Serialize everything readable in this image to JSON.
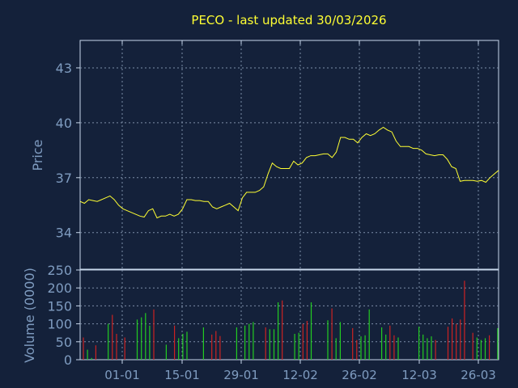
{
  "title": "PECO - last updated 30/03/2026",
  "colors": {
    "background": "#14213a",
    "text_axis": "#7f9cc0",
    "frame": "#c8d8ec",
    "grid": "#7d8ea8",
    "price_line": "#ffff33",
    "title": "#ffff33",
    "volume_up": "#22cc22",
    "volume_down": "#cc2222"
  },
  "chart_data": [
    {
      "type": "line",
      "ylabel": "Price",
      "ylim": [
        32,
        44.5
      ],
      "yticks": [
        "43",
        "40",
        "37",
        "34"
      ],
      "grid": true,
      "series": [
        {
          "values": [
            35.7,
            35.6,
            35.8,
            35.75,
            35.7,
            35.8,
            35.9,
            36.0,
            35.8,
            35.5,
            35.3,
            35.2,
            35.1,
            35.0,
            34.9,
            34.85,
            35.2,
            35.3,
            34.8,
            34.9,
            34.9,
            35.0,
            34.9,
            35.0,
            35.3,
            35.8,
            35.8,
            35.75,
            35.75,
            35.7,
            35.7,
            35.4,
            35.3,
            35.4,
            35.5,
            35.6,
            35.4,
            35.2,
            35.9,
            36.2,
            36.2,
            36.2,
            36.3,
            36.5,
            37.2,
            37.8,
            37.6,
            37.5,
            37.5,
            37.5,
            37.9,
            37.7,
            37.8,
            38.1,
            38.2,
            38.2,
            38.25,
            38.3,
            38.3,
            38.1,
            38.4,
            39.2,
            39.2,
            39.1,
            39.1,
            38.9,
            39.2,
            39.4,
            39.3,
            39.4,
            39.6,
            39.75,
            39.6,
            39.5,
            39.0,
            38.7,
            38.7,
            38.7,
            38.6,
            38.6,
            38.5,
            38.3,
            38.25,
            38.2,
            38.25,
            38.25,
            38.0,
            37.6,
            37.5,
            36.8,
            36.85,
            36.85,
            36.85,
            36.8,
            36.85,
            36.75,
            37.0,
            37.2,
            37.4
          ]
        }
      ]
    },
    {
      "type": "bar",
      "ylabel": "Volume (0000)",
      "ylim": [
        0,
        250
      ],
      "yticks": [
        "250",
        "200",
        "150",
        "100",
        "50",
        "0"
      ],
      "xticks": [
        "01-01",
        "15-01",
        "29-01",
        "12-02",
        "26-02",
        "12-03",
        "26-03"
      ],
      "grid": true,
      "series": [
        {
          "name": "",
          "values": [
            62,
            28,
            5,
            40,
            0,
            0,
            100,
            125,
            72,
            0,
            62,
            0,
            0,
            112,
            118,
            130,
            95,
            140,
            0,
            0,
            42,
            0,
            95,
            60,
            72,
            78,
            0,
            0,
            0,
            90,
            0,
            70,
            80,
            66,
            0,
            0,
            0,
            90,
            0,
            95,
            100,
            105,
            0,
            0,
            90,
            85,
            85,
            160,
            165,
            0,
            0,
            72,
            75,
            100,
            108,
            160,
            0,
            0,
            0,
            110,
            143,
            60,
            105,
            0,
            0,
            88,
            55,
            65,
            68,
            140,
            0,
            0,
            90,
            70,
            95,
            68,
            62,
            0,
            0,
            0,
            0,
            92,
            70,
            60,
            65,
            55,
            0,
            0,
            92,
            115,
            100,
            112,
            220,
            0,
            75,
            62,
            55,
            60,
            68,
            0,
            88
          ],
          "up": [
            false,
            true,
            true,
            false,
            false,
            false,
            true,
            false,
            false,
            false,
            false,
            false,
            false,
            true,
            true,
            true,
            true,
            false,
            false,
            false,
            true,
            false,
            false,
            true,
            true,
            true,
            false,
            false,
            false,
            true,
            false,
            false,
            false,
            false,
            false,
            false,
            false,
            true,
            false,
            true,
            true,
            true,
            false,
            false,
            false,
            true,
            true,
            true,
            false,
            false,
            false,
            true,
            true,
            false,
            false,
            true,
            false,
            false,
            false,
            true,
            false,
            true,
            true,
            false,
            false,
            false,
            false,
            true,
            true,
            true,
            false,
            false,
            true,
            true,
            false,
            false,
            true,
            false,
            false,
            false,
            false,
            true,
            true,
            true,
            true,
            false,
            false,
            false,
            false,
            false,
            false,
            false,
            false,
            false,
            false,
            true,
            true,
            true,
            false,
            false,
            true
          ]
        }
      ]
    }
  ]
}
